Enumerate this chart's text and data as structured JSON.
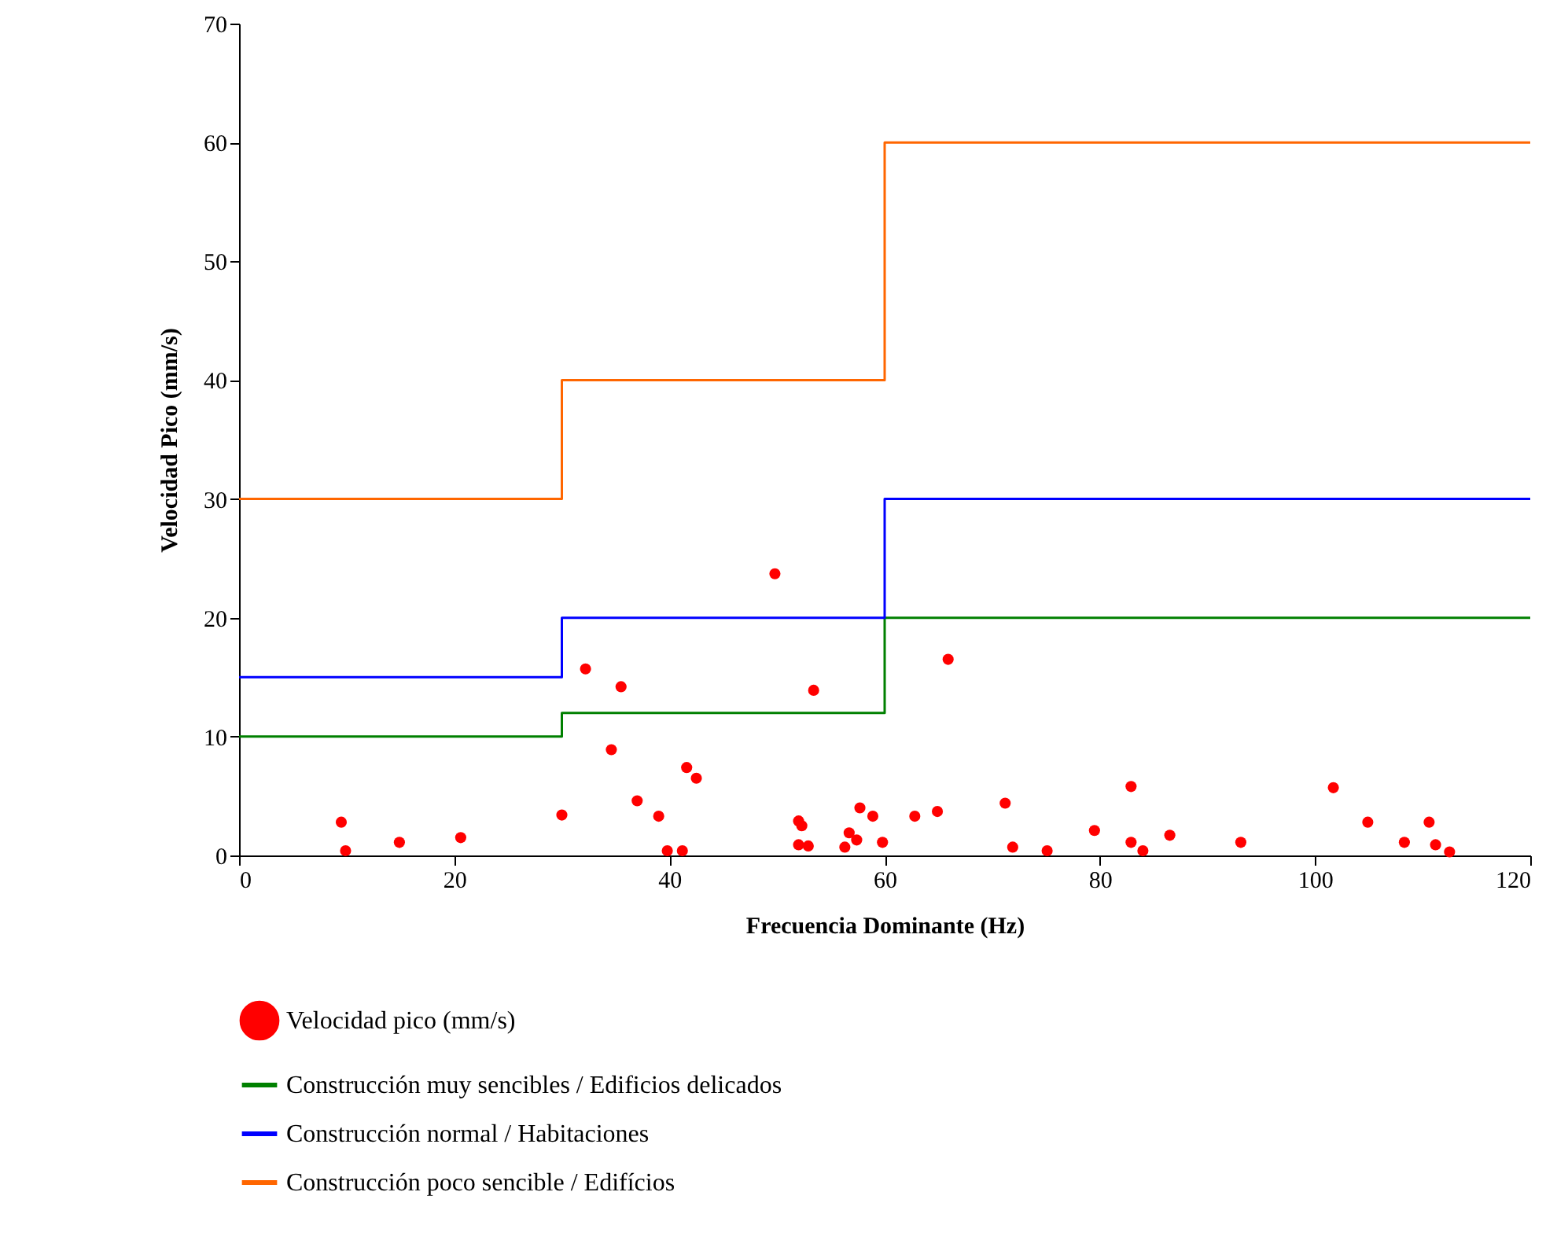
{
  "chart_data": {
    "type": "scatter",
    "xlabel": "Frecuencia Dominante (Hz)",
    "ylabel": "Velocidad Pico (mm/s)",
    "xlim": [
      0,
      120
    ],
    "xticks": [
      0,
      20,
      40,
      60,
      80,
      100,
      120
    ],
    "ylim": [
      0,
      70
    ],
    "yticks": [
      0,
      10,
      20,
      30,
      40,
      50,
      60,
      70
    ],
    "grid": false,
    "legend": "bottom",
    "series": [
      {
        "name": "Velocidad pico (mm/s)",
        "marker": "circle",
        "color": "#ff0000",
        "x": [
          9.5,
          9.9,
          14.9,
          20.6,
          30.0,
          32.2,
          35.5,
          34.6,
          37.0,
          39.0,
          39.8,
          41.2,
          41.6,
          42.5,
          49.8,
          52.0,
          52.3,
          52.0,
          52.9,
          53.4,
          56.3,
          56.7,
          57.4,
          57.7,
          58.9,
          59.8,
          62.8,
          64.9,
          65.9,
          71.2,
          71.9,
          75.1,
          79.5,
          82.9,
          82.9,
          84.0,
          86.5,
          93.1,
          101.7,
          104.9,
          108.3,
          110.6,
          111.2,
          112.5
        ],
        "values": [
          2.8,
          0.4,
          1.1,
          1.5,
          3.4,
          15.7,
          14.2,
          8.9,
          4.6,
          3.3,
          0.4,
          0.4,
          7.4,
          6.5,
          23.7,
          2.9,
          2.5,
          0.9,
          0.8,
          13.9,
          0.7,
          1.9,
          1.3,
          4.0,
          3.3,
          1.1,
          3.3,
          3.7,
          16.5,
          4.4,
          0.7,
          0.4,
          2.1,
          5.8,
          1.1,
          0.4,
          1.7,
          1.1,
          5.7,
          2.8,
          1.1,
          2.8,
          0.9,
          0.3
        ]
      },
      {
        "name": "Construcción muy sencibles / Edificios delicados",
        "type": "step",
        "color": "#008000",
        "x": [
          0,
          30,
          60,
          120
        ],
        "values": [
          10,
          12,
          20,
          20
        ]
      },
      {
        "name": "Construcción normal / Habitaciones",
        "type": "step",
        "color": "#0000ff",
        "x": [
          0,
          30,
          60,
          120
        ],
        "values": [
          15,
          20,
          30,
          30
        ]
      },
      {
        "name": "Construcción poco sencible / Edifícios",
        "type": "step",
        "color": "#ff6600",
        "x": [
          0,
          30,
          60,
          120
        ],
        "values": [
          30,
          40,
          60,
          60
        ]
      }
    ]
  }
}
